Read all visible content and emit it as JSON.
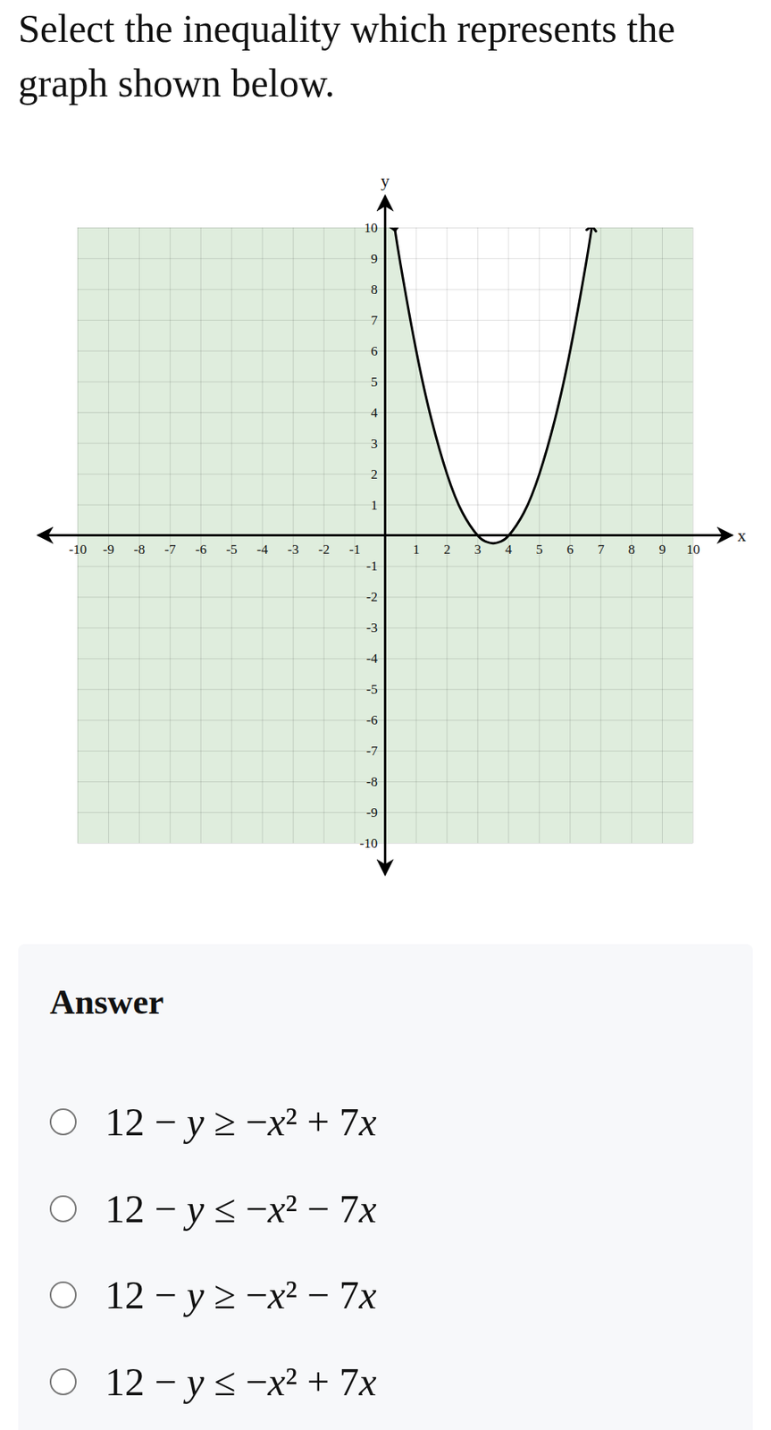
{
  "question": "Select the inequality which represents the graph shown below.",
  "answer_heading": "Answer",
  "options": [
    "12 − y ≥ −x² + 7x",
    "12 − y ≤ −x² − 7x",
    "12 − y ≥ −x² − 7x",
    "12 − y ≤ −x² + 7x"
  ],
  "chart_data": {
    "type": "inequality",
    "x_label": "x",
    "y_label": "y",
    "x": [
      0.3,
      0.5,
      1,
      1.5,
      2,
      2.5,
      3,
      3.25,
      3.5,
      3.75,
      4,
      4.5,
      5,
      5.5,
      6,
      6.5,
      6.7
    ],
    "values": [
      9.99,
      8.75,
      6,
      3.75,
      2,
      0.75,
      0,
      -0.19,
      -0.25,
      -0.19,
      0,
      0.75,
      2,
      3.75,
      6,
      8.75,
      9.99
    ],
    "color": "#dfeddd",
    "line_style": "solid",
    "marker": "arrow",
    "xlim": [
      -10,
      10
    ],
    "ylim": [
      -10,
      10
    ],
    "xticks": [
      -10,
      -9,
      -8,
      -7,
      -6,
      -5,
      -4,
      -3,
      -2,
      -1,
      1,
      2,
      3,
      4,
      5,
      6,
      7,
      8,
      9,
      10
    ],
    "yticks": [
      -10,
      -9,
      -8,
      -7,
      -6,
      -5,
      -4,
      -3,
      -2,
      -1,
      1,
      2,
      3,
      4,
      5,
      6,
      7,
      8,
      9,
      10
    ],
    "grid": true
  }
}
